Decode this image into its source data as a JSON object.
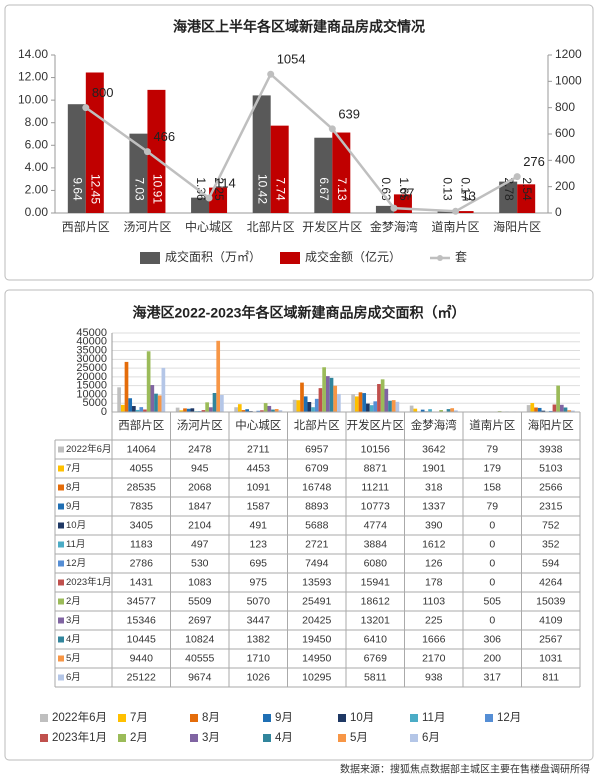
{
  "chart_data": [
    {
      "type": "bar",
      "title": "海港区上半年各区域新建商品房成交情况",
      "categories": [
        "西部片区",
        "汤河片区",
        "中心城区",
        "北部片区",
        "开发区片区",
        "金梦海湾",
        "道南片区",
        "海阳片区"
      ],
      "series": [
        {
          "name": "成交面积（万㎡）",
          "color": "#595959",
          "values": [
            9.64,
            7.03,
            1.36,
            10.42,
            6.67,
            0.63,
            0.13,
            2.78
          ]
        },
        {
          "name": "成交金额（亿元）",
          "color": "#c00000",
          "values": [
            12.45,
            10.91,
            2.25,
            7.74,
            7.13,
            1.65,
            0.17,
            2.54
          ]
        },
        {
          "name": "套",
          "type": "line",
          "axis": "y2",
          "color": "#bfbfbf",
          "values": [
            800,
            466,
            114,
            1054,
            639,
            37,
            13,
            276
          ]
        }
      ],
      "ylim": [
        0,
        14
      ],
      "yticks": [
        {
          "value": 0,
          "label": "0.00"
        },
        {
          "value": 2,
          "label": "2.00"
        },
        {
          "value": 4,
          "label": "4.00"
        },
        {
          "value": 6,
          "label": "6.00"
        },
        {
          "value": 8,
          "label": "8.00"
        },
        {
          "value": 10,
          "label": "10.00"
        },
        {
          "value": 12,
          "label": "12.00"
        },
        {
          "value": 14,
          "label": "14.00"
        }
      ],
      "y2lim": [
        0,
        1200
      ],
      "y2ticks": [
        0,
        200,
        400,
        600,
        800,
        1000,
        1200
      ],
      "grid": false
    },
    {
      "type": "bar",
      "title": "海港区2022-2023年各区域新建商品房成交面积（㎡）",
      "categories": [
        "西部片区",
        "汤河片区",
        "中心城区",
        "北部片区",
        "开发区片区",
        "金梦海湾",
        "道南片区",
        "海阳片区"
      ],
      "series": [
        {
          "name": "2022年6月",
          "color": "#bfbfbf",
          "values": [
            14064,
            2478,
            2711,
            6957,
            10156,
            3642,
            79,
            3938
          ]
        },
        {
          "name": "7月",
          "color": "#ffc000",
          "values": [
            4055,
            945,
            4453,
            6709,
            8871,
            1901,
            179,
            5103
          ]
        },
        {
          "name": "8月",
          "color": "#e46c0a",
          "values": [
            28535,
            2068,
            1091,
            16748,
            11211,
            318,
            158,
            2566
          ]
        },
        {
          "name": "9月",
          "color": "#1f6fb4",
          "values": [
            7835,
            1847,
            1587,
            8893,
            10773,
            1337,
            79,
            2315
          ]
        },
        {
          "name": "10月",
          "color": "#1f3864",
          "values": [
            3405,
            2104,
            491,
            5688,
            4774,
            390,
            0,
            752
          ]
        },
        {
          "name": "11月",
          "color": "#4bacc6",
          "values": [
            1183,
            497,
            123,
            2721,
            3884,
            1612,
            0,
            352
          ]
        },
        {
          "name": "12月",
          "color": "#558ed5",
          "values": [
            2786,
            530,
            695,
            7494,
            6080,
            126,
            0,
            594
          ]
        },
        {
          "name": "2023年1月",
          "color": "#c0504d",
          "values": [
            1431,
            1083,
            975,
            13593,
            15941,
            178,
            0,
            4264
          ]
        },
        {
          "name": "2月",
          "color": "#9bbb59",
          "values": [
            34577,
            5509,
            5070,
            25491,
            18612,
            1103,
            505,
            15039
          ]
        },
        {
          "name": "3月",
          "color": "#8064a2",
          "values": [
            15346,
            2697,
            3447,
            20425,
            13201,
            225,
            0,
            4109
          ]
        },
        {
          "name": "4月",
          "color": "#31859c",
          "values": [
            10445,
            10824,
            1382,
            19450,
            6410,
            1666,
            306,
            2567
          ]
        },
        {
          "name": "5月",
          "color": "#f79646",
          "values": [
            9440,
            40555,
            1710,
            14950,
            6769,
            2170,
            200,
            1031
          ]
        },
        {
          "name": "6月",
          "color": "#b4c6e7",
          "values": [
            25122,
            9674,
            1026,
            10295,
            5811,
            938,
            317,
            811
          ]
        }
      ],
      "ylim": [
        0,
        45000
      ],
      "yticks": [
        0,
        5000,
        10000,
        15000,
        20000,
        25000,
        30000,
        35000,
        40000,
        45000
      ],
      "grid": true
    }
  ],
  "source": "数据来源：搜狐焦点数据部主城区主要在售楼盘调研所得"
}
